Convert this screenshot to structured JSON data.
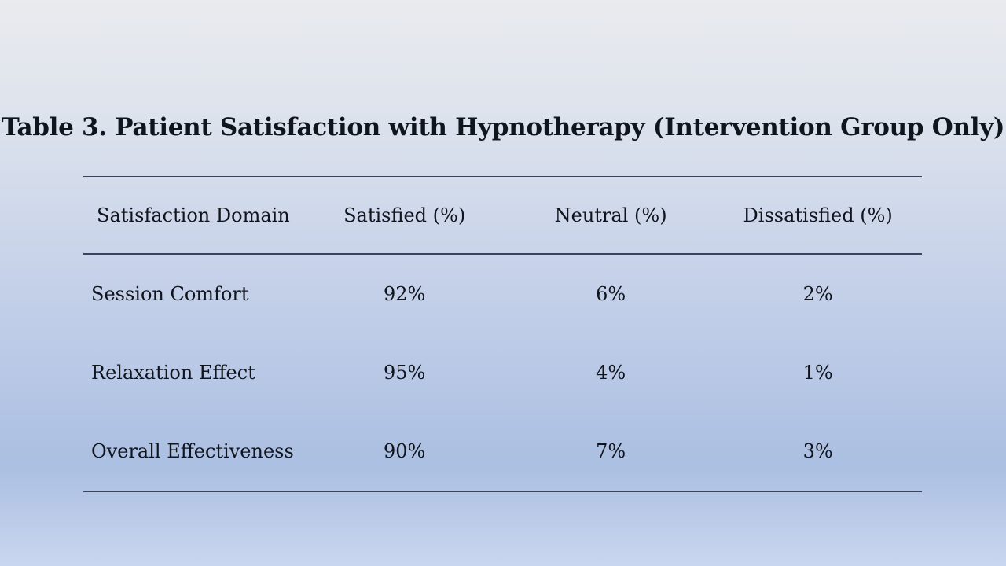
{
  "slide": {
    "title": "Table 3. Patient Satisfaction with Hypnotherapy (Intervention Group Only)"
  },
  "table": {
    "columns": [
      "Satisfaction Domain",
      "Satisfied (%)",
      "Neutral (%)",
      "Dissatisfied (%)"
    ],
    "rows": [
      [
        "Session Comfort",
        "92%",
        "6%",
        "2%"
      ],
      [
        "Relaxation Effect",
        "95%",
        "4%",
        "1%"
      ],
      [
        "Overall Effectiveness",
        "90%",
        "7%",
        "3%"
      ]
    ]
  },
  "chart_data": {
    "type": "table",
    "title": "Table 3. Patient Satisfaction with Hypnotherapy (Intervention Group Only)",
    "categories": [
      "Session Comfort",
      "Relaxation Effect",
      "Overall Effectiveness"
    ],
    "series": [
      {
        "name": "Satisfied (%)",
        "values": [
          92,
          95,
          90
        ]
      },
      {
        "name": "Neutral (%)",
        "values": [
          6,
          4,
          7
        ]
      },
      {
        "name": "Dissatisfied (%)",
        "values": [
          2,
          1,
          3
        ]
      }
    ]
  },
  "colors": {
    "background_top": "#e9ebee",
    "background_bottom": "#c9d6ee",
    "background_mid_blue": "#abbfe2",
    "rule": "#39445c",
    "text": "#10141c"
  }
}
